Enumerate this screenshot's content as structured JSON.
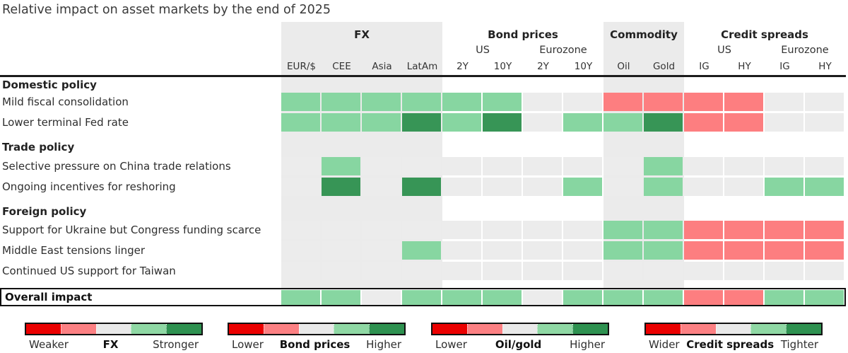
{
  "title": "Relative impact on asset markets by the end of 2025",
  "colors": {
    "band_gray": "#ebebeb",
    "cell_codes": {
      "n": "#ececec",
      "lg": "#87d6a1",
      "dg": "#379556",
      "pk": "#fd7e80"
    },
    "legend_scale": [
      "#eb0000",
      "#fc8083",
      "#e9e9e9",
      "#8fd8a4",
      "#2e9150"
    ]
  },
  "chart_data": {
    "type": "heatmap",
    "title": "Relative impact on asset markets by the end of 2025",
    "code_legend": {
      "dg": "strong positive / much stronger-higher-tighter (dark green)",
      "lg": "positive / stronger-higher-tighter (light green)",
      "n": "neutral (grey)",
      "pk": "negative / weaker-lower-wider (red)"
    },
    "column_groups": [
      {
        "label": "FX",
        "band": true,
        "subgroups": [],
        "columns": [
          "EUR/$",
          "CEE",
          "Asia",
          "LatAm"
        ]
      },
      {
        "label": "Bond prices",
        "band": false,
        "subgroups": [
          {
            "label": "US",
            "span": 2
          },
          {
            "label": "Eurozone",
            "span": 2
          }
        ],
        "columns": [
          "2Y",
          "10Y",
          "2Y",
          "10Y"
        ]
      },
      {
        "label": "Commodity",
        "band": true,
        "subgroups": [],
        "columns": [
          "Oil",
          "Gold"
        ]
      },
      {
        "label": "Credit spreads",
        "band": false,
        "subgroups": [
          {
            "label": "US",
            "span": 2
          },
          {
            "label": "Eurozone",
            "span": 2
          }
        ],
        "columns": [
          "IG",
          "HY",
          "IG",
          "HY"
        ]
      }
    ],
    "columns": [
      "EUR/$",
      "CEE",
      "Asia",
      "LatAm",
      "2Y",
      "10Y",
      "2Y",
      "10Y",
      "Oil",
      "Gold",
      "IG",
      "HY",
      "IG",
      "HY"
    ],
    "sections": [
      {
        "label": "Domestic policy",
        "rows": [
          {
            "label": "Mild fiscal consolidation",
            "cells": [
              "lg",
              "lg",
              "lg",
              "lg",
              "lg",
              "lg",
              "n",
              "n",
              "pk",
              "pk",
              "pk",
              "pk",
              "n",
              "n"
            ]
          },
          {
            "label": "Lower terminal Fed rate",
            "cells": [
              "lg",
              "lg",
              "lg",
              "dg",
              "lg",
              "dg",
              "n",
              "lg",
              "lg",
              "dg",
              "pk",
              "pk",
              "n",
              "n"
            ]
          }
        ]
      },
      {
        "label": "Trade policy",
        "rows": [
          {
            "label": "Selective pressure on China trade relations",
            "cells": [
              "n",
              "lg",
              "n",
              "n",
              "n",
              "n",
              "n",
              "n",
              "n",
              "lg",
              "n",
              "n",
              "n",
              "n"
            ]
          },
          {
            "label": "Ongoing incentives for reshoring",
            "cells": [
              "n",
              "dg",
              "n",
              "dg",
              "n",
              "n",
              "n",
              "lg",
              "n",
              "lg",
              "n",
              "n",
              "lg",
              "lg"
            ]
          }
        ]
      },
      {
        "label": "Foreign policy",
        "rows": [
          {
            "label": "Support for Ukraine but Congress funding scarce",
            "cells": [
              "n",
              "n",
              "n",
              "n",
              "n",
              "n",
              "n",
              "n",
              "lg",
              "lg",
              "pk",
              "pk",
              "pk",
              "pk"
            ]
          },
          {
            "label": "Middle East tensions linger",
            "cells": [
              "n",
              "n",
              "n",
              "lg",
              "n",
              "n",
              "n",
              "n",
              "lg",
              "lg",
              "pk",
              "pk",
              "pk",
              "pk"
            ]
          },
          {
            "label": "Continued US support for Taiwan",
            "cells": [
              "n",
              "n",
              "n",
              "n",
              "n",
              "n",
              "n",
              "n",
              "n",
              "n",
              "n",
              "n",
              "n",
              "n"
            ]
          }
        ]
      }
    ],
    "overall": {
      "label": "Overall impact",
      "cells": [
        "lg",
        "lg",
        "n",
        "lg",
        "lg",
        "lg",
        "n",
        "lg",
        "lg",
        "lg",
        "pk",
        "pk",
        "lg",
        "lg"
      ]
    },
    "legends": [
      {
        "left": "Weaker",
        "center": "FX",
        "right": "Stronger"
      },
      {
        "left": "Lower",
        "center": "Bond prices",
        "right": "Higher"
      },
      {
        "left": "Lower",
        "center": "Oil/gold",
        "right": "Higher"
      },
      {
        "left": "Wider",
        "center": "Credit spreads",
        "right": "Tighter"
      }
    ]
  }
}
